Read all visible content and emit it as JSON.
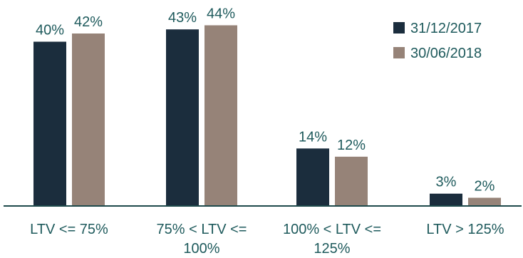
{
  "chart_data": {
    "type": "bar",
    "categories": [
      "LTV <= 75%",
      "75% < LTV <= 100%",
      "100% < LTV <= 125%",
      "LTV > 125%"
    ],
    "category_lines": [
      [
        "LTV <= 75%"
      ],
      [
        "75% < LTV <=",
        "100%"
      ],
      [
        "100% < LTV <=",
        "125%"
      ],
      [
        "LTV > 125%"
      ]
    ],
    "series": [
      {
        "name": "31/12/2017",
        "values": [
          40,
          43,
          14,
          3
        ],
        "labels": [
          "40%",
          "43%",
          "14%",
          "3%"
        ],
        "color": "#1b2d3d"
      },
      {
        "name": "30/06/2018",
        "values": [
          42,
          44,
          12,
          2
        ],
        "labels": [
          "42%",
          "44%",
          "12%",
          "2%"
        ],
        "color": "#968378"
      }
    ],
    "value_unit": "%",
    "ylim": [
      0,
      48
    ],
    "legend_position": "top-right",
    "grid": false,
    "title": "",
    "xlabel": "",
    "ylabel": ""
  },
  "colors": {
    "label_text": "#1e5a5c",
    "axis_line": "#1e4a4c",
    "background": "#ffffff"
  }
}
